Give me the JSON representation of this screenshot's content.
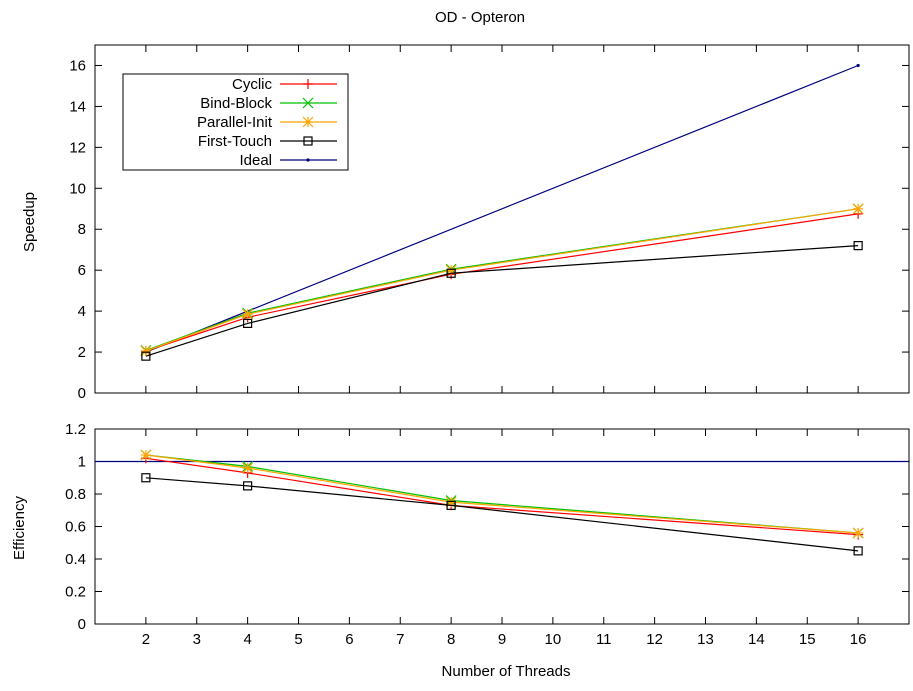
{
  "chart_data": [
    {
      "type": "line",
      "title": "OD - Opteron",
      "ylabel": "Speedup",
      "xlabel": "",
      "xlim": [
        1,
        17
      ],
      "ylim": [
        0,
        17
      ],
      "xticks": [
        2,
        3,
        4,
        5,
        6,
        7,
        8,
        9,
        10,
        11,
        12,
        13,
        14,
        15,
        16
      ],
      "yticks": [
        0,
        2,
        4,
        6,
        8,
        10,
        12,
        14,
        16
      ],
      "legend_position": "top-left",
      "grid": false,
      "series": [
        {
          "name": "Cyclic",
          "color": "#ff0000",
          "marker": "plus",
          "x": [
            2,
            4,
            8,
            16
          ],
          "values": [
            2.05,
            3.7,
            5.8,
            8.75
          ]
        },
        {
          "name": "Bind-Block",
          "color": "#00c000",
          "marker": "cross",
          "x": [
            2,
            4,
            8,
            16
          ],
          "values": [
            2.08,
            3.9,
            6.05,
            9.0
          ]
        },
        {
          "name": "Parallel-Init",
          "color": "#ffa500",
          "marker": "star",
          "x": [
            2,
            4,
            8,
            16
          ],
          "values": [
            2.05,
            3.85,
            6.0,
            9.0
          ]
        },
        {
          "name": "First-Touch",
          "color": "#000000",
          "marker": "square",
          "x": [
            2,
            4,
            8,
            16
          ],
          "values": [
            1.8,
            3.4,
            5.85,
            7.2
          ]
        },
        {
          "name": "Ideal",
          "color": "#000080",
          "marker": "dot",
          "x": [
            2,
            16
          ],
          "values": [
            2,
            16
          ]
        }
      ]
    },
    {
      "type": "line",
      "title": "",
      "ylabel": "Efficiency",
      "xlabel": "Number of Threads",
      "xlim": [
        1,
        17
      ],
      "ylim": [
        0,
        1.2
      ],
      "xticks": [
        2,
        3,
        4,
        5,
        6,
        7,
        8,
        9,
        10,
        11,
        12,
        13,
        14,
        15,
        16
      ],
      "yticks": [
        0,
        0.2,
        0.4,
        0.6,
        0.8,
        1,
        1.2
      ],
      "grid": false,
      "series": [
        {
          "name": "Cyclic",
          "color": "#ff0000",
          "marker": "plus",
          "x": [
            2,
            4,
            8,
            16
          ],
          "values": [
            1.02,
            0.93,
            0.73,
            0.55
          ]
        },
        {
          "name": "Bind-Block",
          "color": "#00c000",
          "marker": "cross",
          "x": [
            2,
            4,
            8,
            16
          ],
          "values": [
            1.04,
            0.97,
            0.76,
            0.56
          ]
        },
        {
          "name": "Parallel-Init",
          "color": "#ffa500",
          "marker": "star",
          "x": [
            2,
            4,
            8,
            16
          ],
          "values": [
            1.04,
            0.96,
            0.75,
            0.56
          ]
        },
        {
          "name": "First-Touch",
          "color": "#000000",
          "marker": "square",
          "x": [
            2,
            4,
            8,
            16
          ],
          "values": [
            0.9,
            0.85,
            0.73,
            0.45
          ]
        },
        {
          "name": "Ideal",
          "color": "#000080",
          "marker": "none",
          "x": [
            1,
            17
          ],
          "values": [
            1,
            1
          ]
        }
      ]
    }
  ]
}
